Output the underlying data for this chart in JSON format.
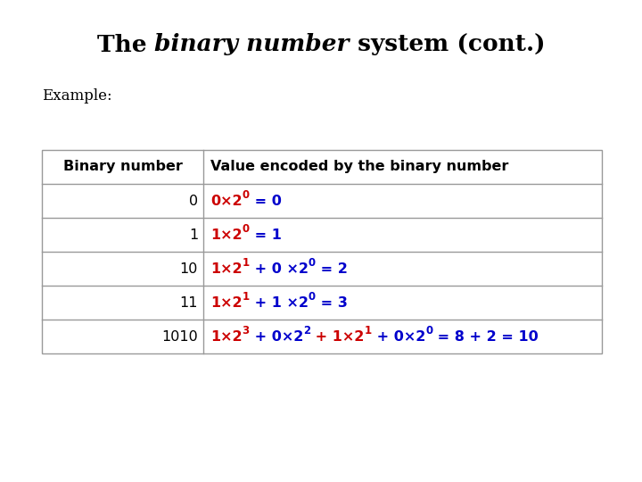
{
  "title_parts": [
    {
      "text": "The ",
      "style": "normal",
      "weight": "bold"
    },
    {
      "text": "binary number",
      "style": "italic",
      "weight": "bold"
    },
    {
      "text": " system (cont.)",
      "style": "normal",
      "weight": "bold"
    }
  ],
  "example_label": "Example:",
  "col1_header": "Binary number",
  "col2_header": "Value encoded by the binary number",
  "rows": [
    {
      "binary": "0",
      "value_segments": [
        {
          "text": "0×2",
          "color": "#cc0000",
          "sup": false
        },
        {
          "text": "0",
          "color": "#cc0000",
          "sup": true
        },
        {
          "text": " = 0",
          "color": "#0000cc",
          "sup": false
        }
      ]
    },
    {
      "binary": "1",
      "value_segments": [
        {
          "text": "1×2",
          "color": "#cc0000",
          "sup": false
        },
        {
          "text": "0",
          "color": "#cc0000",
          "sup": true
        },
        {
          "text": " = 1",
          "color": "#0000cc",
          "sup": false
        }
      ]
    },
    {
      "binary": "10",
      "value_segments": [
        {
          "text": "1×2",
          "color": "#cc0000",
          "sup": false
        },
        {
          "text": "1",
          "color": "#cc0000",
          "sup": true
        },
        {
          "text": " + 0 ×2",
          "color": "#0000cc",
          "sup": false
        },
        {
          "text": "0",
          "color": "#0000cc",
          "sup": true
        },
        {
          "text": " = 2",
          "color": "#0000cc",
          "sup": false
        }
      ]
    },
    {
      "binary": "11",
      "value_segments": [
        {
          "text": "1×2",
          "color": "#cc0000",
          "sup": false
        },
        {
          "text": "1",
          "color": "#cc0000",
          "sup": true
        },
        {
          "text": " + 1 ×2",
          "color": "#0000cc",
          "sup": false
        },
        {
          "text": "0",
          "color": "#0000cc",
          "sup": true
        },
        {
          "text": " = 3",
          "color": "#0000cc",
          "sup": false
        }
      ]
    },
    {
      "binary": "1010",
      "value_segments": [
        {
          "text": "1×2",
          "color": "#cc0000",
          "sup": false
        },
        {
          "text": "3",
          "color": "#cc0000",
          "sup": true
        },
        {
          "text": " + 0×2",
          "color": "#0000cc",
          "sup": false
        },
        {
          "text": "2",
          "color": "#0000cc",
          "sup": true
        },
        {
          "text": " + 1×2",
          "color": "#cc0000",
          "sup": false
        },
        {
          "text": "1",
          "color": "#cc0000",
          "sup": true
        },
        {
          "text": " + 0×2",
          "color": "#0000cc",
          "sup": false
        },
        {
          "text": "0",
          "color": "#0000cc",
          "sup": true
        },
        {
          "text": " = 8 + 2 = 10",
          "color": "#0000cc",
          "sup": false
        }
      ]
    }
  ],
  "bg_color": "#ffffff",
  "border_color": "#999999",
  "title_fontsize": 19,
  "example_fontsize": 12,
  "header_fontsize": 11.5,
  "data_fontsize": 11.5,
  "sup_fontsize": 8.5
}
